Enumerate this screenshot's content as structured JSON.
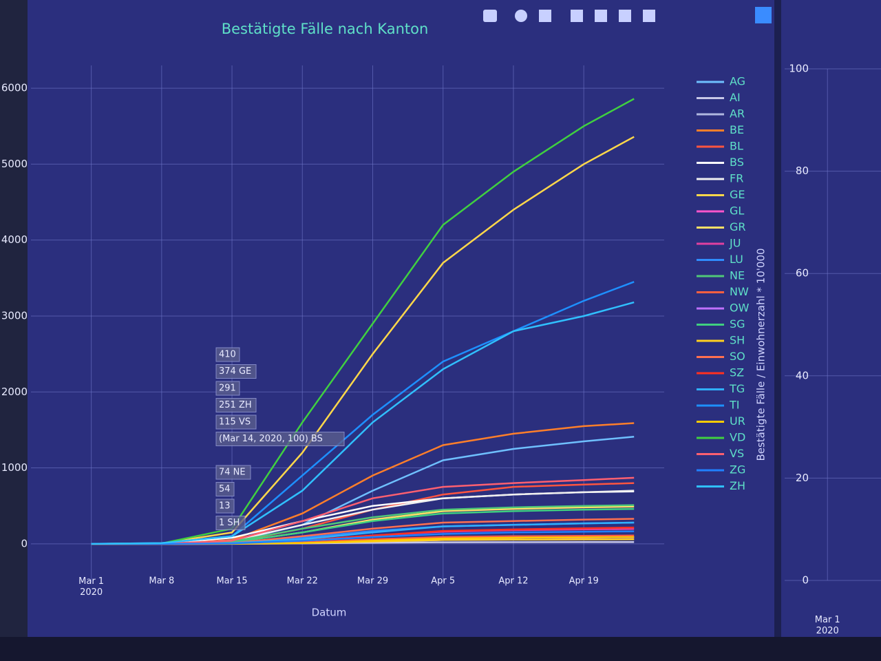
{
  "chart_data": [
    {
      "type": "line",
      "title": "Bestätigte Fälle nach Kanton",
      "xlabel": "Datum",
      "x": [
        "2020-03-01",
        "2020-03-08",
        "2020-03-15",
        "2020-03-22",
        "2020-03-29",
        "2020-04-05",
        "2020-04-12",
        "2020-04-19",
        "2020-04-24"
      ],
      "xlim": [
        "2020-02-24",
        "2020-04-27"
      ],
      "xticks": [
        {
          "value": "2020-03-01",
          "label": "Mar 1\n2020"
        },
        {
          "value": "2020-03-08",
          "label": "Mar 8"
        },
        {
          "value": "2020-03-15",
          "label": "Mar 15"
        },
        {
          "value": "2020-03-22",
          "label": "Mar 22"
        },
        {
          "value": "2020-03-29",
          "label": "Mar 29"
        },
        {
          "value": "2020-04-05",
          "label": "Apr 5"
        },
        {
          "value": "2020-04-12",
          "label": "Apr 12"
        },
        {
          "value": "2020-04-19",
          "label": "Apr 19"
        }
      ],
      "ylim": [
        -500,
        6300
      ],
      "yticks": [
        0,
        1000,
        2000,
        3000,
        4000,
        5000,
        6000
      ],
      "grid": true,
      "legend": "right",
      "series": [
        {
          "name": "AG",
          "color": "#6fc0ff",
          "values": [
            0,
            1,
            30,
            250,
            700,
            1100,
            1250,
            1350,
            1410
          ]
        },
        {
          "name": "AI",
          "color": "#c8c8e8",
          "values": [
            0,
            0,
            0,
            5,
            15,
            20,
            22,
            23,
            24
          ]
        },
        {
          "name": "AR",
          "color": "#b0b8e0",
          "values": [
            0,
            0,
            1,
            10,
            40,
            70,
            80,
            85,
            88
          ]
        },
        {
          "name": "BE",
          "color": "#ff7f2a",
          "values": [
            0,
            2,
            50,
            400,
            900,
            1300,
            1450,
            1550,
            1590
          ]
        },
        {
          "name": "BL",
          "color": "#ff5540",
          "values": [
            0,
            1,
            20,
            200,
            450,
            650,
            750,
            780,
            800
          ]
        },
        {
          "name": "BS",
          "color": "#ffffff",
          "values": [
            0,
            5,
            80,
            300,
            500,
            600,
            650,
            680,
            690
          ]
        },
        {
          "name": "FR",
          "color": "#f0f0f0",
          "values": [
            0,
            2,
            40,
            250,
            450,
            600,
            650,
            680,
            700
          ]
        },
        {
          "name": "GE",
          "color": "#ffd84a",
          "values": [
            0,
            5,
            150,
            1200,
            2500,
            3700,
            4400,
            5000,
            5360
          ]
        },
        {
          "name": "GL",
          "color": "#ff55cc",
          "values": [
            0,
            0,
            1,
            10,
            40,
            70,
            80,
            85,
            88
          ]
        },
        {
          "name": "GR",
          "color": "#ffe066",
          "values": [
            0,
            1,
            20,
            150,
            320,
            430,
            460,
            480,
            490
          ]
        },
        {
          "name": "JU",
          "color": "#e040a0",
          "values": [
            0,
            0,
            5,
            40,
            110,
            160,
            180,
            190,
            195
          ]
        },
        {
          "name": "LU",
          "color": "#2f8cff",
          "values": [
            0,
            1,
            10,
            80,
            170,
            230,
            250,
            270,
            280
          ]
        },
        {
          "name": "NE",
          "color": "#50c878",
          "values": [
            0,
            1,
            30,
            200,
            350,
            450,
            480,
            500,
            510
          ]
        },
        {
          "name": "NW",
          "color": "#ff6040",
          "values": [
            0,
            0,
            3,
            20,
            60,
            90,
            100,
            105,
            110
          ]
        },
        {
          "name": "OW",
          "color": "#c070ff",
          "values": [
            0,
            0,
            1,
            10,
            30,
            50,
            55,
            60,
            62
          ]
        },
        {
          "name": "SG",
          "color": "#40d080",
          "values": [
            0,
            1,
            20,
            150,
            300,
            400,
            430,
            450,
            460
          ]
        },
        {
          "name": "SH",
          "color": "#ffd020",
          "values": [
            0,
            0,
            1,
            10,
            30,
            50,
            55,
            58,
            60
          ]
        },
        {
          "name": "SO",
          "color": "#ff7050",
          "values": [
            0,
            0,
            10,
            100,
            200,
            280,
            300,
            320,
            330
          ]
        },
        {
          "name": "SZ",
          "color": "#ff3020",
          "values": [
            0,
            0,
            5,
            40,
            110,
            170,
            190,
            205,
            215
          ]
        },
        {
          "name": "TG",
          "color": "#30b0ff",
          "values": [
            0,
            0,
            10,
            60,
            150,
            230,
            250,
            270,
            280
          ]
        },
        {
          "name": "TI",
          "color": "#1e90ff",
          "values": [
            0,
            10,
            100,
            900,
            1700,
            2400,
            2800,
            3200,
            3450
          ]
        },
        {
          "name": "UR",
          "color": "#ffcc00",
          "values": [
            0,
            0,
            1,
            10,
            40,
            70,
            80,
            85,
            88
          ]
        },
        {
          "name": "VD",
          "color": "#40d040",
          "values": [
            0,
            5,
            200,
            1600,
            2900,
            4200,
            4900,
            5500,
            5860
          ]
        },
        {
          "name": "VS",
          "color": "#ff6070",
          "values": [
            0,
            2,
            40,
            300,
            600,
            750,
            800,
            840,
            870
          ]
        },
        {
          "name": "ZG",
          "color": "#2080ff",
          "values": [
            0,
            0,
            5,
            40,
            90,
            130,
            150,
            160,
            165
          ]
        },
        {
          "name": "ZH",
          "color": "#30c0ff",
          "values": [
            0,
            10,
            100,
            700,
            1600,
            2300,
            2800,
            3000,
            3180
          ]
        }
      ],
      "annotations": [
        "410",
        "374 GE",
        "291",
        "251 ZH",
        "115 VS",
        "(Mar 14, 2020, 100) BS",
        "74 NE",
        "54",
        "13",
        "1 SH"
      ]
    },
    {
      "type": "line",
      "ylabel": "Bestätigte Fälle / Einwohnerzahl * 10'000",
      "xlim": [
        "2020-02-26",
        "2020-03-06"
      ],
      "xticks": [
        {
          "value": "2020-03-01",
          "label": "Mar 1\n2020"
        }
      ],
      "ylim": [
        0,
        100
      ],
      "yticks": [
        0,
        20,
        40,
        60,
        80,
        100
      ],
      "grid": true
    }
  ]
}
